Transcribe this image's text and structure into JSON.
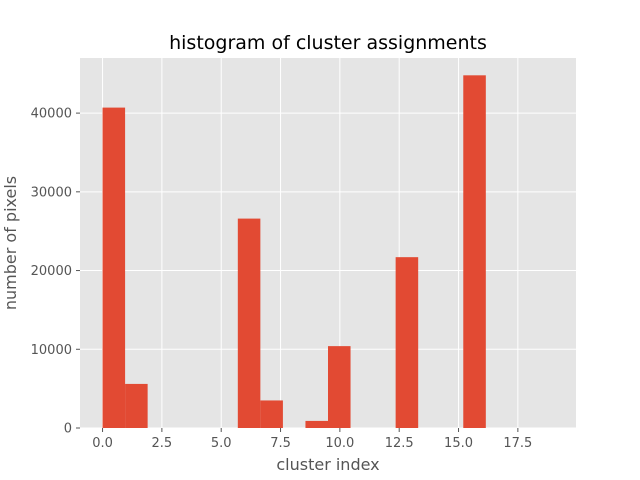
{
  "chart_data": {
    "type": "bar",
    "title": "histogram of cluster assignments",
    "xlabel": "cluster index",
    "ylabel": "number of pixels",
    "xlim": [
      -0.95,
      19.95
    ],
    "ylim": [
      0,
      47000
    ],
    "bin_width": 0.95,
    "bins": [
      {
        "start": 0.0,
        "value": 40700
      },
      {
        "start": 0.95,
        "value": 5600
      },
      {
        "start": 5.7,
        "value": 26600
      },
      {
        "start": 6.65,
        "value": 3500
      },
      {
        "start": 8.55,
        "value": 900
      },
      {
        "start": 9.5,
        "value": 10400
      },
      {
        "start": 12.35,
        "value": 21700
      },
      {
        "start": 15.2,
        "value": 44800
      }
    ],
    "xticks": [
      {
        "value": 0,
        "label": "0.0"
      },
      {
        "value": 2.5,
        "label": "2.5"
      },
      {
        "value": 5,
        "label": "5.0"
      },
      {
        "value": 7.5,
        "label": "7.5"
      },
      {
        "value": 10,
        "label": "10.0"
      },
      {
        "value": 12.5,
        "label": "12.5"
      },
      {
        "value": 15,
        "label": "15.0"
      },
      {
        "value": 17.5,
        "label": "17.5"
      }
    ],
    "yticks": [
      {
        "value": 0,
        "label": "0"
      },
      {
        "value": 10000,
        "label": "10000"
      },
      {
        "value": 20000,
        "label": "20000"
      },
      {
        "value": 30000,
        "label": "30000"
      },
      {
        "value": 40000,
        "label": "40000"
      }
    ],
    "grid": true,
    "colors": {
      "bar": "#E24A33",
      "plot_background": "#E5E5E5",
      "grid": "#FFFFFF",
      "tick": "#555555"
    }
  }
}
